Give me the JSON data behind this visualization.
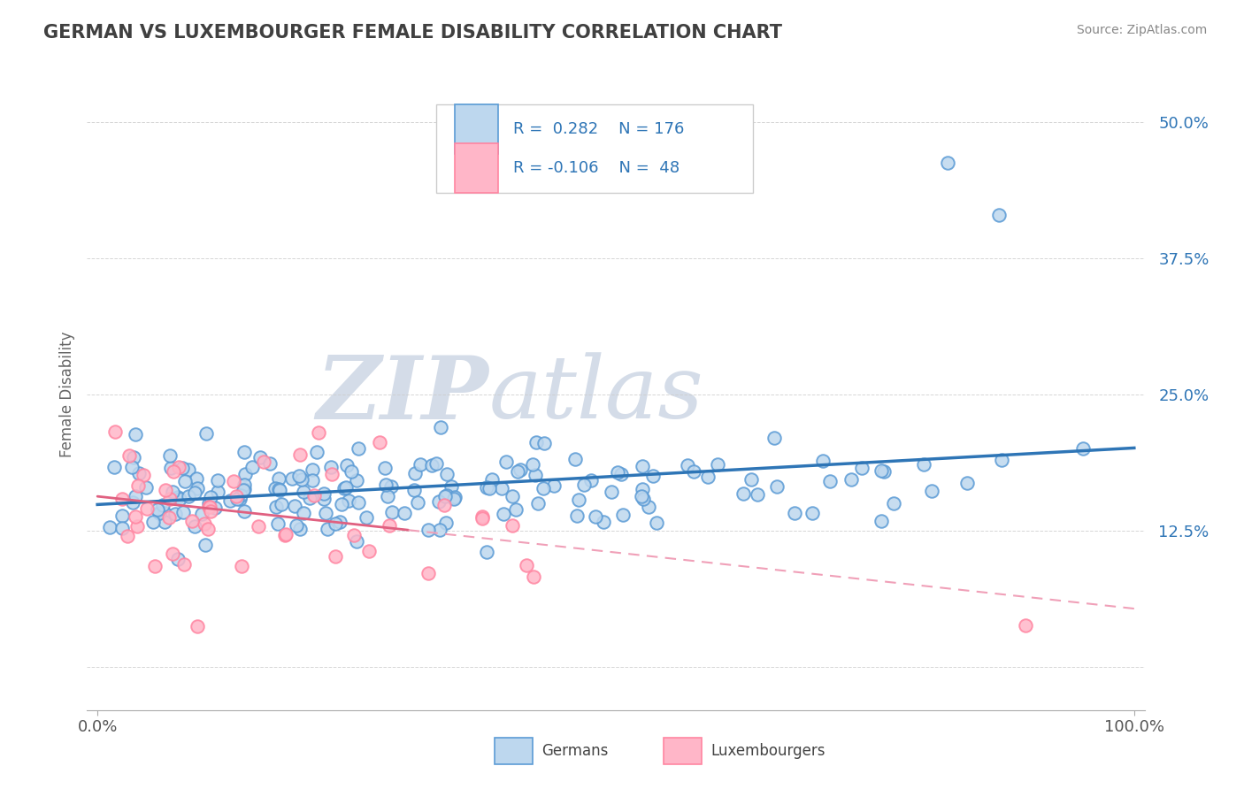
{
  "title": "GERMAN VS LUXEMBOURGER FEMALE DISABILITY CORRELATION CHART",
  "source_text": "Source: ZipAtlas.com",
  "xlabel_german": "Germans",
  "xlabel_luxembourger": "Luxembourgers",
  "ylabel": "Female Disability",
  "xlim": [
    -0.01,
    1.01
  ],
  "ylim": [
    -0.04,
    0.54
  ],
  "yticks": [
    0.0,
    0.125,
    0.25,
    0.375,
    0.5
  ],
  "ytick_labels": [
    "",
    "12.5%",
    "25.0%",
    "37.5%",
    "50.0%"
  ],
  "xticks": [
    0.0,
    1.0
  ],
  "xtick_labels": [
    "0.0%",
    "100.0%"
  ],
  "R_german": 0.282,
  "N_german": 176,
  "R_luxembourger": -0.106,
  "N_luxembourger": 48,
  "german_color": "#5B9BD5",
  "german_fill": "#BDD7EE",
  "luxembourger_color": "#FF85A1",
  "luxembourger_fill": "#FFB6C8",
  "trend_german_color": "#2E75B6",
  "trend_luxembourger_solid_color": "#E06080",
  "trend_luxembourger_dash_color": "#F0A0B8",
  "background_color": "#FFFFFF",
  "watermark_color": "#D4DCE8",
  "grid_color": "#CCCCCC",
  "title_color": "#404040",
  "legend_text_color": "#2E75B6",
  "source_color": "#888888"
}
